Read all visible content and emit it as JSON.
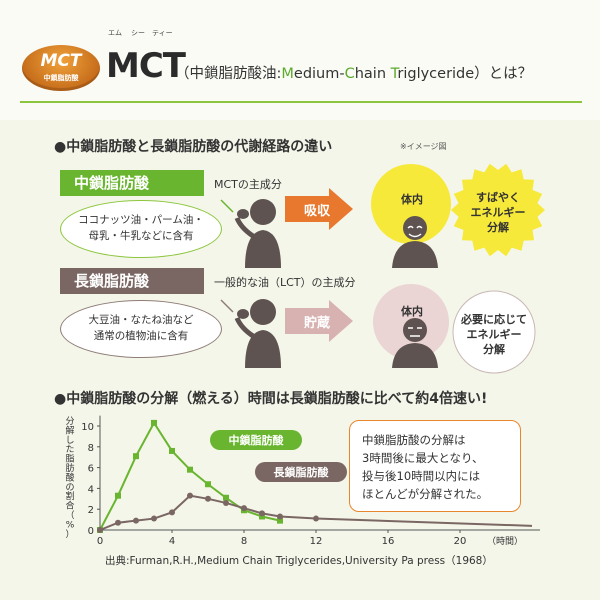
{
  "header": {
    "logo_text": "MCT",
    "logo_sub": "中鎖脂肪酸",
    "ruby": [
      "エム",
      "シー",
      "ティー"
    ],
    "title": "MCT",
    "subtitle_pre": "（中鎖脂肪酸油:",
    "subtitle_m": "M",
    "subtitle_edium": "edium-",
    "subtitle_c": "C",
    "subtitle_hain": "hain ",
    "subtitle_t": "T",
    "subtitle_rest": "riglyceride）とは？"
  },
  "section1": {
    "heading": "●中鎖脂肪酸と長鎖脂肪酸の代謝経路の違い",
    "note": "※イメージ図",
    "mct": {
      "label": "中鎖脂肪酸",
      "desc": "MCTの主成分",
      "bubble_lines": [
        "ココナッツ油・パーム油・",
        "母乳・牛乳などに含有"
      ],
      "arrow": "吸収",
      "body_label": "体内",
      "result_lines": [
        "すばやく",
        "エネルギー",
        "分解"
      ]
    },
    "lct": {
      "label": "長鎖脂肪酸",
      "desc": "一般的な油（LCT）の主成分",
      "bubble_lines": [
        "大豆油・なたね油など",
        "通常の植物油に含有"
      ],
      "arrow": "貯蔵",
      "body_label": "体内",
      "result_lines": [
        "必要に応じて",
        "エネルギー",
        "分解"
      ]
    }
  },
  "section2": {
    "heading": "●中鎖脂肪酸の分解（燃える）時間は長鎖脂肪酸に比べて約4倍速い!",
    "callout_text": "中鎖脂肪酸の分解は\n3時間後に最大となり、\n投与後10時間以内には\nほとんどが分解された。",
    "source": "出典:Furman,R.H.,Medium Chain Triglycerides,University Pa press（1968）"
  },
  "chart_data": {
    "type": "line",
    "ylabel": "分解した脂肪酸の割合（%）",
    "xlabel": "（時間）",
    "xlim": [
      0,
      24
    ],
    "ylim": [
      0,
      11
    ],
    "xticks": [
      0,
      4,
      8,
      12,
      16,
      20
    ],
    "yticks": [
      0,
      2,
      4,
      6,
      8,
      10
    ],
    "series": [
      {
        "name": "中鎖脂肪酸",
        "color": "#6ab52f",
        "x": [
          0,
          1,
          2,
          3,
          4,
          5,
          6,
          7,
          8,
          9,
          10
        ],
        "y": [
          0,
          3.3,
          7.1,
          10.3,
          7.6,
          5.8,
          4.4,
          3.1,
          1.9,
          1.3,
          0.9
        ]
      },
      {
        "name": "長鎖脂肪酸",
        "color": "#7a6662",
        "x": [
          0,
          1,
          2,
          3,
          4,
          5,
          6,
          7,
          8,
          9,
          10,
          12,
          24
        ],
        "y": [
          0,
          0.7,
          0.9,
          1.1,
          1.7,
          3.3,
          3.0,
          2.6,
          2.1,
          1.6,
          1.3,
          1.1,
          0.4
        ]
      }
    ]
  }
}
